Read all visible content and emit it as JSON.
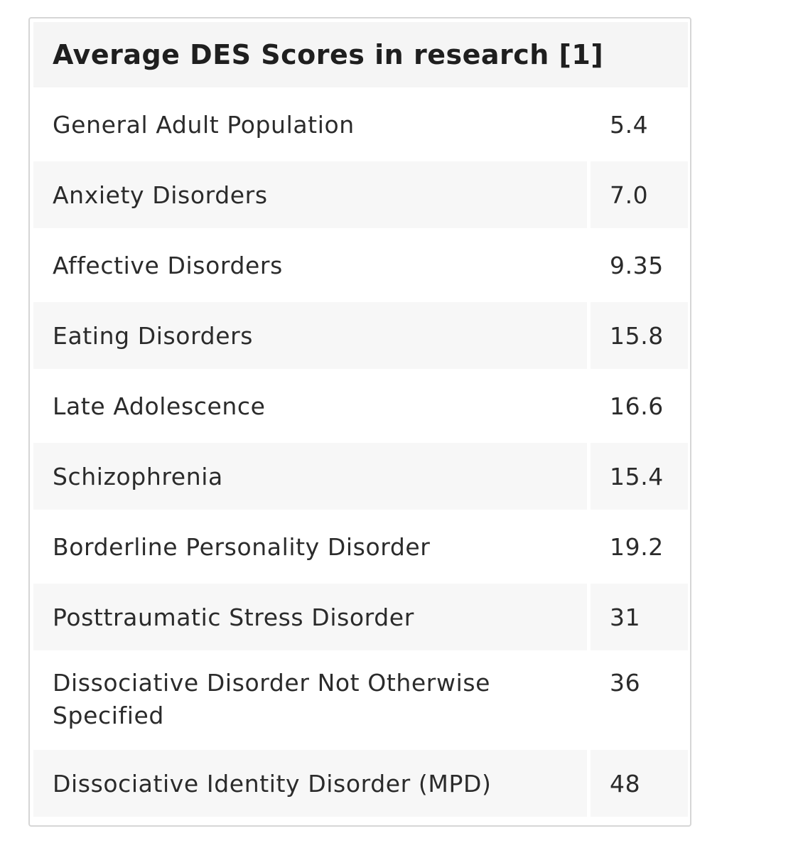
{
  "table": {
    "title": "Average DES Scores in research [1]",
    "rows": [
      {
        "label": "General Adult Population",
        "value": "5.4"
      },
      {
        "label": "Anxiety Disorders",
        "value": "7.0"
      },
      {
        "label": "Affective Disorders",
        "value": "9.35"
      },
      {
        "label": "Eating Disorders",
        "value": "15.8"
      },
      {
        "label": "Late Adolescence",
        "value": "16.6"
      },
      {
        "label": "Schizophrenia",
        "value": "15.4"
      },
      {
        "label": "Borderline Personality Disorder",
        "value": "19.2"
      },
      {
        "label": "Posttraumatic Stress Disorder",
        "value": "31"
      },
      {
        "label": "Dissociative Disorder Not Otherwise Specified",
        "value": "36"
      },
      {
        "label": "Dissociative Identity Disorder (MPD)",
        "value": "48"
      }
    ]
  }
}
